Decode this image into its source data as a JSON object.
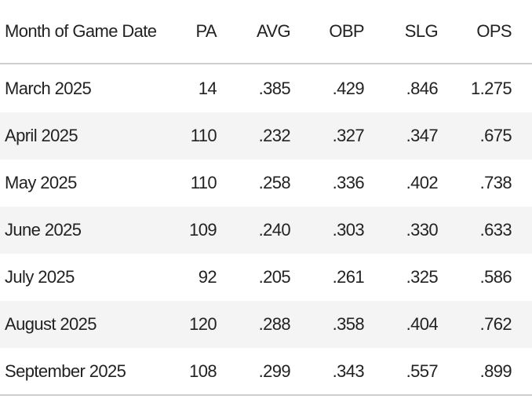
{
  "table": {
    "columns": [
      "Month of Game Date",
      "PA",
      "AVG",
      "OBP",
      "SLG",
      "OPS"
    ],
    "rows": [
      [
        "March 2025",
        "14",
        ".385",
        ".429",
        ".846",
        "1.275"
      ],
      [
        "April 2025",
        "110",
        ".232",
        ".327",
        ".347",
        ".675"
      ],
      [
        "May 2025",
        "110",
        ".258",
        ".336",
        ".402",
        ".738"
      ],
      [
        "June 2025",
        "109",
        ".240",
        ".303",
        ".330",
        ".633"
      ],
      [
        "July 2025",
        "92",
        ".205",
        ".261",
        ".325",
        ".586"
      ],
      [
        "August 2025",
        "120",
        ".288",
        ".358",
        ".404",
        ".762"
      ],
      [
        "September 2025",
        "108",
        ".299",
        ".343",
        ".557",
        ".899"
      ]
    ]
  }
}
